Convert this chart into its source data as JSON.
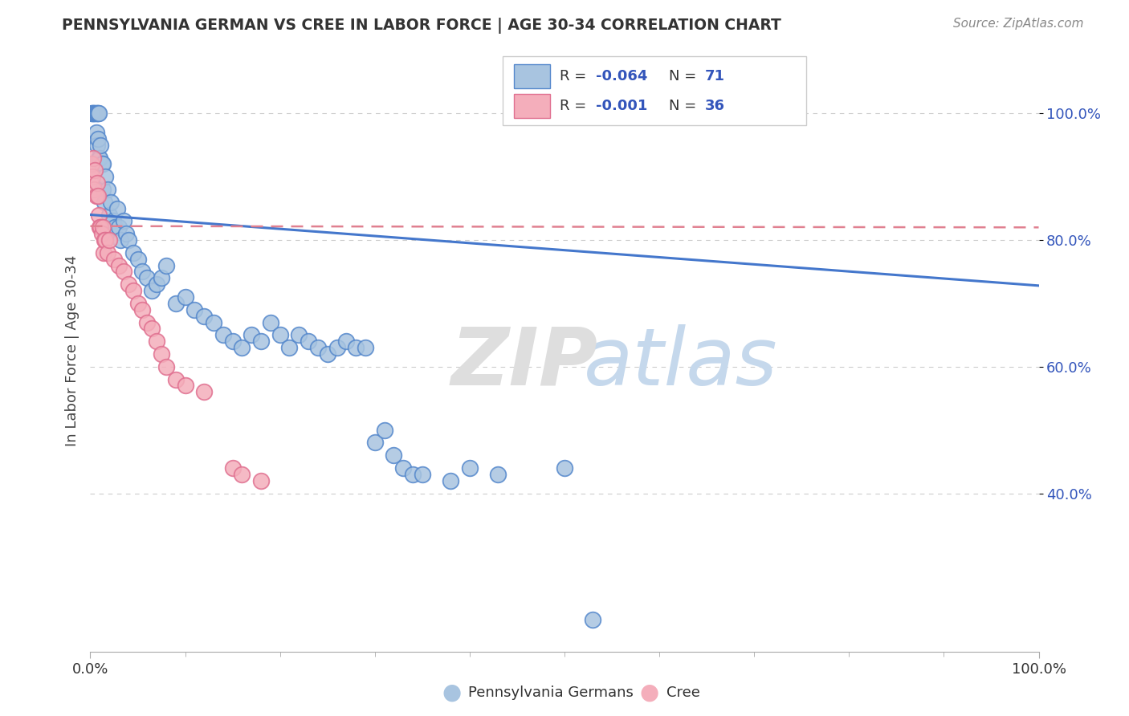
{
  "title": "PENNSYLVANIA GERMAN VS CREE IN LABOR FORCE | AGE 30-34 CORRELATION CHART",
  "source": "Source: ZipAtlas.com",
  "ylabel": "In Labor Force | Age 30-34",
  "legend_blue_R": "-0.064",
  "legend_blue_N": "71",
  "legend_pink_R": "-0.001",
  "legend_pink_N": "36",
  "legend_label_blue": "Pennsylvania Germans",
  "legend_label_pink": "Cree",
  "blue_color": "#A8C4E0",
  "pink_color": "#F4AEBB",
  "blue_edge_color": "#5588CC",
  "pink_edge_color": "#E07090",
  "blue_line_color": "#4477CC",
  "pink_line_color": "#E08090",
  "num_color": "#3355BB",
  "blue_scatter_x": [
    0.001,
    0.002,
    0.003,
    0.004,
    0.005,
    0.006,
    0.006,
    0.007,
    0.007,
    0.008,
    0.008,
    0.009,
    0.009,
    0.01,
    0.011,
    0.012,
    0.013,
    0.013,
    0.015,
    0.016,
    0.018,
    0.02,
    0.022,
    0.024,
    0.026,
    0.028,
    0.03,
    0.032,
    0.035,
    0.038,
    0.04,
    0.045,
    0.05,
    0.055,
    0.06,
    0.065,
    0.07,
    0.075,
    0.08,
    0.09,
    0.1,
    0.11,
    0.12,
    0.13,
    0.14,
    0.15,
    0.16,
    0.17,
    0.18,
    0.19,
    0.2,
    0.21,
    0.22,
    0.23,
    0.24,
    0.25,
    0.26,
    0.27,
    0.28,
    0.29,
    0.3,
    0.31,
    0.32,
    0.33,
    0.34,
    0.35,
    0.38,
    0.4,
    0.43,
    0.5,
    0.53
  ],
  "blue_scatter_y": [
    1.0,
    1.0,
    1.0,
    1.0,
    1.0,
    1.0,
    0.97,
    1.0,
    0.95,
    1.0,
    0.96,
    1.0,
    0.93,
    0.93,
    0.95,
    0.92,
    0.88,
    0.92,
    0.86,
    0.9,
    0.88,
    0.84,
    0.86,
    0.83,
    0.82,
    0.85,
    0.82,
    0.8,
    0.83,
    0.81,
    0.8,
    0.78,
    0.77,
    0.75,
    0.74,
    0.72,
    0.73,
    0.74,
    0.76,
    0.7,
    0.71,
    0.69,
    0.68,
    0.67,
    0.65,
    0.64,
    0.63,
    0.65,
    0.64,
    0.67,
    0.65,
    0.63,
    0.65,
    0.64,
    0.63,
    0.62,
    0.63,
    0.64,
    0.63,
    0.63,
    0.48,
    0.5,
    0.46,
    0.44,
    0.43,
    0.43,
    0.42,
    0.44,
    0.43,
    0.44,
    0.2
  ],
  "pink_scatter_x": [
    0.001,
    0.002,
    0.003,
    0.004,
    0.005,
    0.006,
    0.007,
    0.008,
    0.009,
    0.01,
    0.011,
    0.012,
    0.013,
    0.014,
    0.015,
    0.016,
    0.018,
    0.02,
    0.025,
    0.03,
    0.035,
    0.04,
    0.045,
    0.05,
    0.055,
    0.06,
    0.065,
    0.07,
    0.075,
    0.08,
    0.09,
    0.1,
    0.12,
    0.15,
    0.16,
    0.18
  ],
  "pink_scatter_y": [
    0.92,
    0.9,
    0.93,
    0.88,
    0.91,
    0.87,
    0.89,
    0.87,
    0.84,
    0.82,
    0.82,
    0.81,
    0.82,
    0.78,
    0.8,
    0.8,
    0.78,
    0.8,
    0.77,
    0.76,
    0.75,
    0.73,
    0.72,
    0.7,
    0.69,
    0.67,
    0.66,
    0.64,
    0.62,
    0.6,
    0.58,
    0.57,
    0.56,
    0.44,
    0.43,
    0.42
  ],
  "blue_trend_x": [
    0.0,
    1.0
  ],
  "blue_trend_y": [
    0.84,
    0.728
  ],
  "pink_trend_x": [
    0.0,
    1.0
  ],
  "pink_trend_y": [
    0.822,
    0.82
  ],
  "xlim": [
    0.0,
    1.0
  ],
  "ylim": [
    0.15,
    1.1
  ],
  "yticks": [
    0.4,
    0.6,
    0.8,
    1.0
  ],
  "ytick_labels": [
    "40.0%",
    "60.0%",
    "80.0%",
    "100.0%"
  ],
  "xticks": [
    0.0,
    1.0
  ],
  "xtick_labels": [
    "0.0%",
    "100.0%"
  ]
}
